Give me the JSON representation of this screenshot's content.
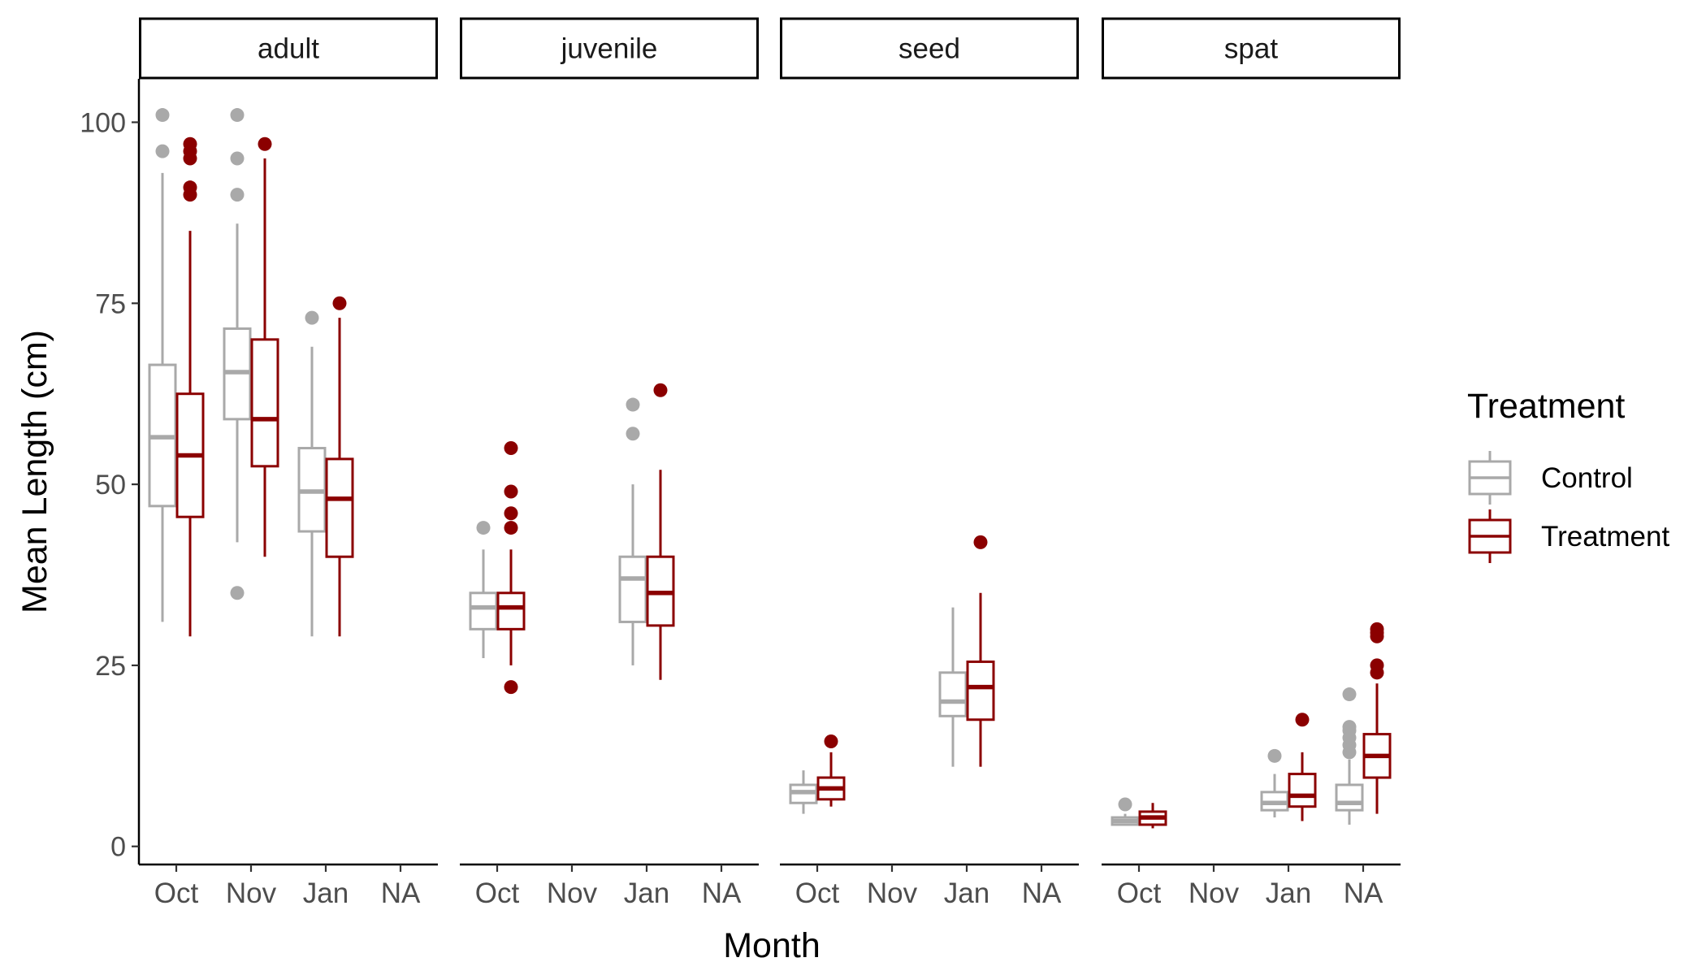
{
  "chart_data": {
    "type": "boxplot",
    "xlabel": "Month",
    "ylabel": "Mean Length (cm)",
    "ylim": [
      -2.5,
      106
    ],
    "yticks": [
      0,
      25,
      50,
      75,
      100
    ],
    "categories": [
      "Oct",
      "Nov",
      "Jan",
      "NA"
    ],
    "legend": {
      "title": "Treatment",
      "position": "right",
      "entries": [
        {
          "name": "Control",
          "color": "#a9a9a9"
        },
        {
          "name": "Treatment",
          "color": "#8b0000"
        }
      ]
    },
    "grid": false,
    "facets": [
      {
        "label": "adult",
        "show_y_axis": true,
        "boxes": [
          {
            "month": "Oct",
            "group": "Control",
            "lower": 31,
            "q1": 47,
            "median": 56.5,
            "q3": 66.5,
            "upper": 93,
            "outliers": [
              96,
              101
            ]
          },
          {
            "month": "Oct",
            "group": "Treatment",
            "lower": 29,
            "q1": 45.5,
            "median": 54,
            "q3": 62.5,
            "upper": 85,
            "outliers": [
              90,
              91,
              95,
              96,
              97
            ]
          },
          {
            "month": "Nov",
            "group": "Control",
            "lower": 42,
            "q1": 59,
            "median": 65.5,
            "q3": 71.5,
            "upper": 86,
            "outliers": [
              35,
              90,
              95,
              101
            ]
          },
          {
            "month": "Nov",
            "group": "Treatment",
            "lower": 40,
            "q1": 52.5,
            "median": 59,
            "q3": 70,
            "upper": 95,
            "outliers": [
              97
            ]
          },
          {
            "month": "Jan",
            "group": "Control",
            "lower": 29,
            "q1": 43.5,
            "median": 49,
            "q3": 55,
            "upper": 69,
            "outliers": [
              73
            ]
          },
          {
            "month": "Jan",
            "group": "Treatment",
            "lower": 29,
            "q1": 40,
            "median": 48,
            "q3": 53.5,
            "upper": 73,
            "outliers": [
              75
            ]
          }
        ]
      },
      {
        "label": "juvenile",
        "show_y_axis": false,
        "boxes": [
          {
            "month": "Oct",
            "group": "Control",
            "lower": 26,
            "q1": 30,
            "median": 33,
            "q3": 35,
            "upper": 41,
            "outliers": [
              44
            ]
          },
          {
            "month": "Oct",
            "group": "Treatment",
            "lower": 25,
            "q1": 30,
            "median": 33,
            "q3": 35,
            "upper": 41,
            "outliers": [
              22,
              44,
              46,
              49,
              55
            ]
          },
          {
            "month": "Jan",
            "group": "Control",
            "lower": 25,
            "q1": 31,
            "median": 37,
            "q3": 40,
            "upper": 50,
            "outliers": [
              57,
              61
            ]
          },
          {
            "month": "Jan",
            "group": "Treatment",
            "lower": 23,
            "q1": 30.5,
            "median": 35,
            "q3": 40,
            "upper": 52,
            "outliers": [
              63
            ]
          }
        ]
      },
      {
        "label": "seed",
        "show_y_axis": false,
        "boxes": [
          {
            "month": "Oct",
            "group": "Control",
            "lower": 4.5,
            "q1": 6,
            "median": 7.5,
            "q3": 8.5,
            "upper": 10.5,
            "outliers": []
          },
          {
            "month": "Oct",
            "group": "Treatment",
            "lower": 5.5,
            "q1": 6.5,
            "median": 8,
            "q3": 9.5,
            "upper": 13,
            "outliers": [
              14.5
            ]
          },
          {
            "month": "Jan",
            "group": "Control",
            "lower": 11,
            "q1": 18,
            "median": 20,
            "q3": 24,
            "upper": 33,
            "outliers": []
          },
          {
            "month": "Jan",
            "group": "Treatment",
            "lower": 11,
            "q1": 17.5,
            "median": 22,
            "q3": 25.5,
            "upper": 35,
            "outliers": [
              42
            ]
          }
        ]
      },
      {
        "label": "spat",
        "show_y_axis": false,
        "boxes": [
          {
            "month": "Oct",
            "group": "Control",
            "lower": 3,
            "q1": 3,
            "median": 3.5,
            "q3": 4,
            "upper": 4.5,
            "outliers": [
              5.8
            ]
          },
          {
            "month": "Oct",
            "group": "Treatment",
            "lower": 2.5,
            "q1": 3,
            "median": 4,
            "q3": 4.8,
            "upper": 6,
            "outliers": []
          },
          {
            "month": "Jan",
            "group": "Control",
            "lower": 4,
            "q1": 5,
            "median": 6,
            "q3": 7.5,
            "upper": 10,
            "outliers": [
              12.5
            ]
          },
          {
            "month": "Jan",
            "group": "Treatment",
            "lower": 3.5,
            "q1": 5.5,
            "median": 7,
            "q3": 10,
            "upper": 13,
            "outliers": [
              17.5
            ]
          },
          {
            "month": "NA",
            "group": "Control",
            "lower": 3,
            "q1": 5,
            "median": 6,
            "q3": 8.5,
            "upper": 12,
            "outliers": [
              13,
              14,
              15,
              16,
              16.5,
              21
            ]
          },
          {
            "month": "NA",
            "group": "Treatment",
            "lower": 4.5,
            "q1": 9.5,
            "median": 12.5,
            "q3": 15.5,
            "upper": 22.5,
            "outliers": [
              24,
              25,
              29,
              29.5,
              30
            ]
          }
        ]
      }
    ]
  }
}
